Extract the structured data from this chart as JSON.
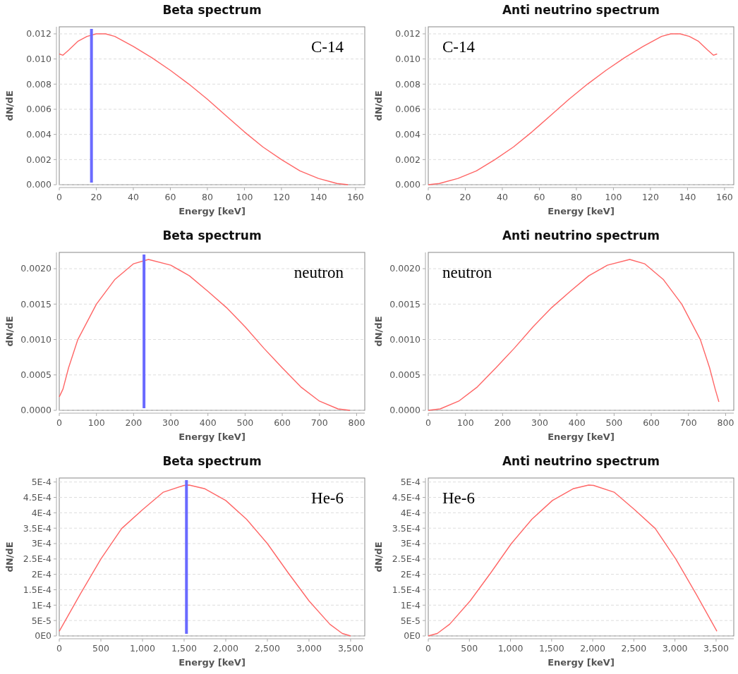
{
  "chart_data": [
    {
      "type": "line",
      "title": "Beta spectrum",
      "xlabel": "Energy [keV]",
      "ylabel": "dN/dE",
      "annotations": [
        "C-14"
      ],
      "grid": "y",
      "xlim": [
        0,
        165
      ],
      "xticks": [
        0,
        20,
        40,
        60,
        80,
        100,
        120,
        140,
        160
      ],
      "ylim": [
        0,
        0.01256
      ],
      "yticks": [
        {
          "value": 0,
          "label": "0.000"
        },
        {
          "value": 0.002,
          "label": "0.002"
        },
        {
          "value": 0.004,
          "label": "0.004"
        },
        {
          "value": 0.006,
          "label": "0.006"
        },
        {
          "value": 0.008,
          "label": "0.008"
        },
        {
          "value": 0.01,
          "label": "0.010"
        },
        {
          "value": 0.012,
          "label": "0.012"
        }
      ],
      "ref_lines": [
        {
          "axis": "x",
          "value": 17.4,
          "color": "#6a6aff"
        }
      ],
      "series": [
        {
          "color": "#ff6666",
          "x": [
            0,
            2,
            5,
            10,
            15,
            20,
            25,
            30,
            40,
            50,
            60,
            70,
            80,
            90,
            100,
            110,
            120,
            130,
            140,
            150,
            156
          ],
          "values": [
            0.0104,
            0.0103,
            0.0107,
            0.0114,
            0.0118,
            0.012,
            0.012,
            0.0118,
            0.011,
            0.0101,
            0.0091,
            0.008,
            0.0068,
            0.0055,
            0.0042,
            0.003,
            0.002,
            0.0011,
            0.0005,
            0.0001,
            0
          ]
        }
      ]
    },
    {
      "type": "line",
      "title": "Anti neutrino spectrum",
      "xlabel": "Energy [keV]",
      "ylabel": "dN/dE",
      "annotations": [
        "C-14"
      ],
      "grid": "y",
      "xlim": [
        0,
        165
      ],
      "xticks": [
        0,
        20,
        40,
        60,
        80,
        100,
        120,
        140,
        160
      ],
      "ylim": [
        0,
        0.01256
      ],
      "yticks": [
        {
          "value": 0,
          "label": "0.000"
        },
        {
          "value": 0.002,
          "label": "0.002"
        },
        {
          "value": 0.004,
          "label": "0.004"
        },
        {
          "value": 0.006,
          "label": "0.006"
        },
        {
          "value": 0.008,
          "label": "0.008"
        },
        {
          "value": 0.01,
          "label": "0.010"
        },
        {
          "value": 0.012,
          "label": "0.012"
        }
      ],
      "series": [
        {
          "color": "#ff6666",
          "x": [
            0,
            6,
            16,
            26,
            36,
            46,
            56,
            66,
            76,
            86,
            96,
            106,
            116,
            126,
            131,
            136,
            141,
            146,
            151,
            154,
            156
          ],
          "values": [
            0,
            0.0001,
            0.0005,
            0.0011,
            0.002,
            0.003,
            0.0042,
            0.0055,
            0.0068,
            0.008,
            0.0091,
            0.0101,
            0.011,
            0.0118,
            0.012,
            0.012,
            0.0118,
            0.0114,
            0.0107,
            0.0103,
            0.0104
          ]
        }
      ]
    },
    {
      "type": "line",
      "title": "Beta spectrum",
      "xlabel": "Energy [keV]",
      "ylabel": "dN/dE",
      "annotations": [
        "neutron"
      ],
      "grid": "y",
      "xlim": [
        0,
        822
      ],
      "xticks": [
        0,
        100,
        200,
        300,
        400,
        500,
        600,
        700,
        800
      ],
      "ylim": [
        0,
        0.00223
      ],
      "yticks": [
        {
          "value": 0,
          "label": "0.0000"
        },
        {
          "value": 0.0005,
          "label": "0.0005"
        },
        {
          "value": 0.001,
          "label": "0.0010"
        },
        {
          "value": 0.0015,
          "label": "0.0015"
        },
        {
          "value": 0.002,
          "label": "0.0020"
        }
      ],
      "ref_lines": [
        {
          "axis": "x",
          "value": 228,
          "color": "#6a6aff"
        }
      ],
      "series": [
        {
          "color": "#ff6666",
          "x": [
            0,
            10,
            25,
            50,
            100,
            150,
            200,
            240,
            300,
            350,
            400,
            450,
            500,
            550,
            600,
            650,
            700,
            750,
            782
          ],
          "values": [
            0.00019,
            0.0003,
            0.0006,
            0.001,
            0.0015,
            0.00185,
            0.00207,
            0.00213,
            0.00205,
            0.0019,
            0.00168,
            0.00145,
            0.00118,
            0.00088,
            0.0006,
            0.00033,
            0.00013,
            2e-05,
            0
          ]
        }
      ]
    },
    {
      "type": "line",
      "title": "Anti neutrino spectrum",
      "xlabel": "Energy [keV]",
      "ylabel": "dN/dE",
      "annotations": [
        "neutron"
      ],
      "grid": "y",
      "xlim": [
        0,
        822
      ],
      "xticks": [
        0,
        100,
        200,
        300,
        400,
        500,
        600,
        700,
        800
      ],
      "ylim": [
        0,
        0.00223
      ],
      "yticks": [
        {
          "value": 0,
          "label": "0.0000"
        },
        {
          "value": 0.0005,
          "label": "0.0005"
        },
        {
          "value": 0.001,
          "label": "0.0010"
        },
        {
          "value": 0.0015,
          "label": "0.0015"
        },
        {
          "value": 0.002,
          "label": "0.0020"
        }
      ],
      "series": [
        {
          "color": "#ff6666",
          "x": [
            0,
            32,
            82,
            132,
            182,
            232,
            282,
            332,
            382,
            432,
            482,
            542,
            582,
            632,
            682,
            732,
            757,
            772,
            782
          ],
          "values": [
            0,
            2e-05,
            0.00013,
            0.00033,
            0.0006,
            0.00088,
            0.00118,
            0.00145,
            0.00168,
            0.0019,
            0.00205,
            0.00213,
            0.00207,
            0.00185,
            0.0015,
            0.001,
            0.0006,
            0.0003,
            0.00012
          ]
        }
      ]
    },
    {
      "type": "line",
      "title": "Beta spectrum",
      "xlabel": "Energy [keV]",
      "ylabel": "dN/dE",
      "annotations": [
        "He-6"
      ],
      "grid": "y",
      "xlim": [
        0,
        3670
      ],
      "xticks": [
        0,
        500,
        {
          "value": 1000,
          "label": "1,000"
        },
        {
          "value": 1500,
          "label": "1,500"
        },
        {
          "value": 2000,
          "label": "2,000"
        },
        {
          "value": 2500,
          "label": "2,500"
        },
        {
          "value": 3000,
          "label": "3,000"
        },
        {
          "value": 3500,
          "label": "3,500"
        }
      ],
      "ylim": [
        0,
        0.000513
      ],
      "yticks": [
        {
          "value": 0,
          "label": "0E0"
        },
        {
          "value": 5e-05,
          "label": "5E-5"
        },
        {
          "value": 0.0001,
          "label": "1E-4"
        },
        {
          "value": 0.00015,
          "label": "1.5E-4"
        },
        {
          "value": 0.0002,
          "label": "2E-4"
        },
        {
          "value": 0.00025,
          "label": "2.5E-4"
        },
        {
          "value": 0.0003,
          "label": "3E-4"
        },
        {
          "value": 0.00035,
          "label": "3.5E-4"
        },
        {
          "value": 0.0004,
          "label": "4E-4"
        },
        {
          "value": 0.00045,
          "label": "4.5E-4"
        },
        {
          "value": 0.0005,
          "label": "5E-4"
        }
      ],
      "ref_lines": [
        {
          "axis": "x",
          "value": 1528,
          "color": "#6a6aff"
        }
      ],
      "series": [
        {
          "color": "#ff6666",
          "x": [
            0,
            250,
            500,
            750,
            1000,
            1250,
            1500,
            1560,
            1750,
            2000,
            2250,
            2500,
            2750,
            3000,
            3250,
            3400,
            3500
          ],
          "values": [
            1.5e-05,
            0.000135,
            0.00025,
            0.000349,
            0.00041,
            0.000467,
            0.000489,
            0.00049,
            0.000478,
            0.00044,
            0.000379,
            0.0003,
            0.000205,
            0.000114,
            3.8e-05,
            8e-06,
            0
          ]
        }
      ]
    },
    {
      "type": "line",
      "title": "Anti neutrino spectrum",
      "xlabel": "Energy [keV]",
      "ylabel": "dN/dE",
      "annotations": [
        "He-6"
      ],
      "grid": "y",
      "xlim": [
        0,
        3715
      ],
      "xticks": [
        0,
        500,
        {
          "value": 1000,
          "label": "1,000"
        },
        {
          "value": 1500,
          "label": "1,500"
        },
        {
          "value": 2000,
          "label": "2,000"
        },
        {
          "value": 2500,
          "label": "2,500"
        },
        {
          "value": 3000,
          "label": "3,000"
        },
        {
          "value": 3500,
          "label": "3,500"
        }
      ],
      "ylim": [
        0,
        0.000513
      ],
      "yticks": [
        {
          "value": 0,
          "label": "0E0"
        },
        {
          "value": 5e-05,
          "label": "5E-5"
        },
        {
          "value": 0.0001,
          "label": "1E-4"
        },
        {
          "value": 0.00015,
          "label": "1.5E-4"
        },
        {
          "value": 0.0002,
          "label": "2E-4"
        },
        {
          "value": 0.00025,
          "label": "2.5E-4"
        },
        {
          "value": 0.0003,
          "label": "3E-4"
        },
        {
          "value": 0.00035,
          "label": "3.5E-4"
        },
        {
          "value": 0.0004,
          "label": "4E-4"
        },
        {
          "value": 0.00045,
          "label": "4.5E-4"
        },
        {
          "value": 0.0005,
          "label": "5E-4"
        }
      ],
      "series": [
        {
          "color": "#ff6666",
          "x": [
            0,
            110,
            260,
            510,
            760,
            1010,
            1260,
            1510,
            1760,
            1950,
            2010,
            2260,
            2510,
            2760,
            3010,
            3260,
            3510
          ],
          "values": [
            0,
            8e-06,
            3.8e-05,
            0.000114,
            0.000205,
            0.0003,
            0.000379,
            0.00044,
            0.000478,
            0.00049,
            0.000489,
            0.000467,
            0.00041,
            0.000349,
            0.00025,
            0.000135,
            1.5e-05
          ]
        }
      ]
    }
  ]
}
